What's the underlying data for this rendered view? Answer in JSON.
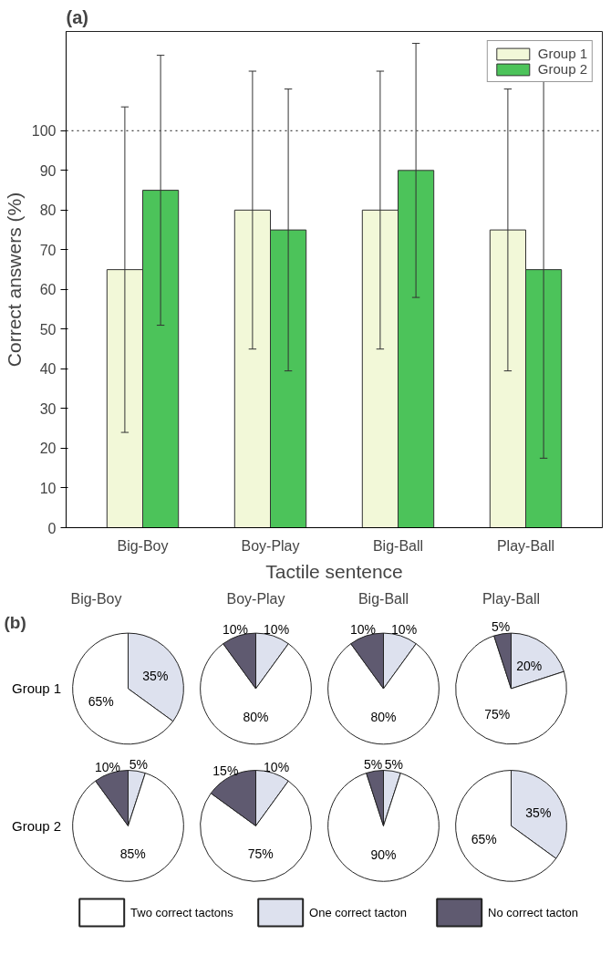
{
  "chart_data": [
    {
      "type": "bar",
      "title": "(a)",
      "xlabel": "Tactile sentence",
      "ylabel": "Correct answers (%)",
      "categories": [
        "Big-Boy",
        "Boy-Play",
        "Big-Ball",
        "Play-Ball"
      ],
      "series": [
        {
          "name": "Group 1",
          "color": "#f2f8d8",
          "values": [
            65,
            80,
            80,
            75
          ],
          "errors": [
            41,
            35,
            35,
            35.5
          ]
        },
        {
          "name": "Group 2",
          "color": "#4cc35a",
          "values": [
            85,
            75,
            90,
            65
          ],
          "errors": [
            34,
            35.5,
            32,
            47.5
          ]
        }
      ],
      "ylim": [
        0,
        125
      ],
      "yticks": [
        0,
        10,
        20,
        30,
        40,
        50,
        60,
        70,
        80,
        90,
        100
      ],
      "ref_lines": [
        {
          "axis": "y",
          "value": 100,
          "line_style": "dotted"
        }
      ],
      "legend": "top right",
      "grid": false
    },
    {
      "type": "pie",
      "title": "Big-Boy",
      "ylabel": "Group 1",
      "annotations": [
        "(b)"
      ],
      "legend": "bottom",
      "categories": [
        "Two correct tactons",
        "One correct tacton",
        "No correct tacton"
      ],
      "values": [
        65,
        35,
        0
      ],
      "colors": [
        "#ffffff",
        "#dde1ee",
        "#5f5a70"
      ],
      "value_labels": [
        "65%",
        "35%",
        null
      ]
    },
    {
      "type": "pie",
      "title": "Boy-Play",
      "values": [
        80,
        10,
        10
      ],
      "colors": [
        "#ffffff",
        "#dde1ee",
        "#5f5a70"
      ],
      "value_labels": [
        "80%",
        "10%",
        "10%"
      ]
    },
    {
      "type": "pie",
      "title": "Big-Ball",
      "values": [
        80,
        10,
        10
      ],
      "colors": [
        "#ffffff",
        "#dde1ee",
        "#5f5a70"
      ],
      "value_labels": [
        "80%",
        "10%",
        "10%"
      ]
    },
    {
      "type": "pie",
      "title": "Play-Ball",
      "values": [
        75,
        20,
        5
      ],
      "colors": [
        "#ffffff",
        "#dde1ee",
        "#5f5a70"
      ],
      "value_labels": [
        "75%",
        "20%",
        "5%"
      ]
    },
    {
      "type": "pie",
      "ylabel": "Group 2",
      "values": [
        85,
        5,
        10
      ],
      "colors": [
        "#ffffff",
        "#dde1ee",
        "#5f5a70"
      ],
      "value_labels": [
        "85%",
        "5%",
        "10%"
      ]
    },
    {
      "type": "pie",
      "values": [
        75,
        10,
        15
      ],
      "colors": [
        "#ffffff",
        "#dde1ee",
        "#5f5a70"
      ],
      "value_labels": [
        "75%",
        "10%",
        "15%"
      ]
    },
    {
      "type": "pie",
      "values": [
        90,
        5,
        5
      ],
      "colors": [
        "#ffffff",
        "#dde1ee",
        "#5f5a70"
      ],
      "value_labels": [
        "90%",
        "5%",
        "5%"
      ]
    },
    {
      "type": "pie",
      "values": [
        65,
        35,
        0
      ],
      "colors": [
        "#ffffff",
        "#dde1ee",
        "#5f5a70"
      ],
      "value_labels": [
        "65%",
        "35%",
        null
      ]
    }
  ]
}
